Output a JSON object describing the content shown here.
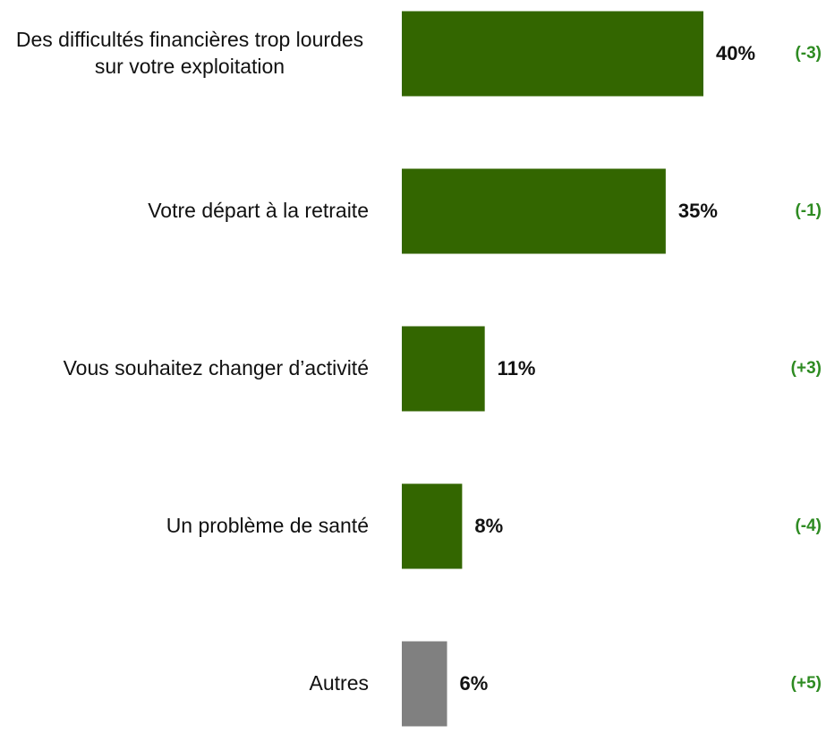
{
  "chart_data": {
    "type": "bar",
    "orientation": "horizontal",
    "categories": [
      "Des difficultés financières trop lourdes sur votre exploitation",
      "Votre départ à la retraite",
      "Vous souhaitez changer d’activité",
      "Un problème de santé",
      "Autres"
    ],
    "values": [
      40,
      35,
      11,
      8,
      6
    ],
    "value_labels": [
      "40%",
      "35%",
      "11%",
      "8%",
      "6%"
    ],
    "colors": [
      "#336600",
      "#336600",
      "#336600",
      "#336600",
      "#808080"
    ],
    "annotations": [
      "(-3)",
      "(-1)",
      "(+3)",
      "(-4)",
      "(+5)"
    ],
    "annotation_color": "#2e8b22",
    "xlim": [
      0,
      40
    ]
  }
}
